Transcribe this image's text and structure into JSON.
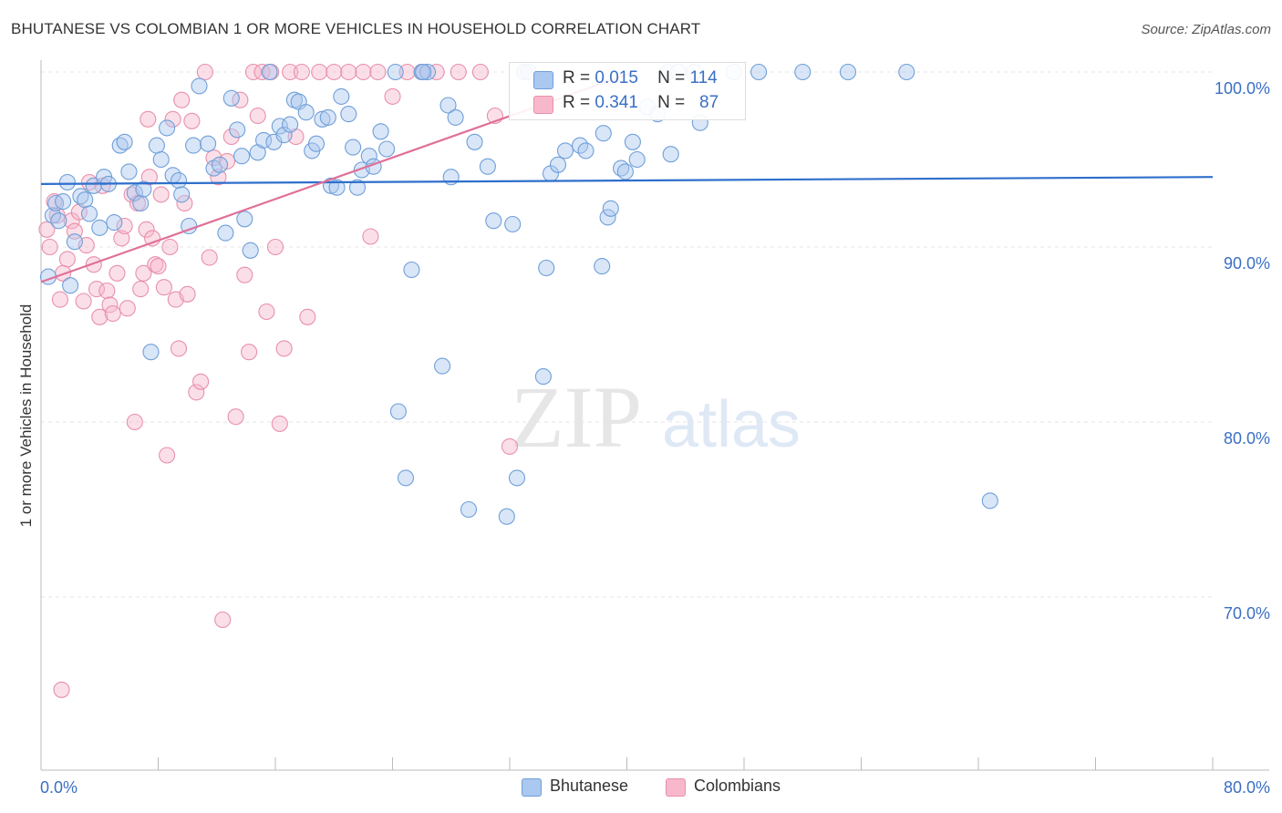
{
  "title": "BHUTANESE VS COLOMBIAN 1 OR MORE VEHICLES IN HOUSEHOLD CORRELATION CHART",
  "source": "Source: ZipAtlas.com",
  "watermark": {
    "zip": "ZIP",
    "atlas": "atlas"
  },
  "colors": {
    "bhutanese_fill": "#aac8f0",
    "bhutanese_stroke": "#6f9fd8",
    "bhutanese_line": "#2e6fcc",
    "colombian_fill": "#f7b8cb",
    "colombian_stroke": "#e890ab",
    "colombian_line": "#e07098",
    "axis_label": "#3a6fc4"
  },
  "legend": {
    "bhutanese": {
      "r_label": "R =",
      "r_value": "0.015",
      "n_label": "N =",
      "n_value": "114"
    },
    "colombian": {
      "r_label": "R =",
      "r_value": "0.341",
      "n_label": "N =",
      "n_value": "87"
    }
  },
  "chart_data": {
    "type": "scatter",
    "title": "BHUTANESE VS COLOMBIAN 1 OR MORE VEHICLES IN HOUSEHOLD CORRELATION CHART",
    "xlabel": "",
    "ylabel": "1 or more Vehicles in Household",
    "xlim": [
      0,
      80
    ],
    "ylim": [
      60.5,
      101.5
    ],
    "x_tick_labels": [
      {
        "value": 0,
        "label": "0.0%"
      },
      {
        "value": 80,
        "label": "80.0%"
      }
    ],
    "y_tick_labels": [
      {
        "value": 100,
        "label": "100.0%"
      },
      {
        "value": 90,
        "label": "90.0%"
      },
      {
        "value": 80,
        "label": "80.0%"
      },
      {
        "value": 70,
        "label": "70.0%"
      }
    ],
    "grid": true,
    "legend_position": "top-center",
    "series": [
      {
        "name": "Bhutanese",
        "r": 0.015,
        "n": 114,
        "trend": {
          "x": [
            0,
            80
          ],
          "y": [
            93.6,
            94.0
          ]
        },
        "points": [
          [
            0.5,
            88.3
          ],
          [
            0.8,
            91.8
          ],
          [
            1.0,
            92.5
          ],
          [
            1.2,
            91.5
          ],
          [
            1.5,
            92.6
          ],
          [
            1.8,
            93.7
          ],
          [
            2.0,
            87.8
          ],
          [
            2.3,
            90.3
          ],
          [
            2.7,
            92.9
          ],
          [
            3.0,
            92.7
          ],
          [
            3.3,
            91.9
          ],
          [
            3.6,
            93.5
          ],
          [
            4.0,
            91.1
          ],
          [
            4.3,
            94.0
          ],
          [
            4.6,
            93.6
          ],
          [
            5.0,
            91.4
          ],
          [
            5.4,
            95.8
          ],
          [
            5.7,
            96.0
          ],
          [
            6.0,
            94.3
          ],
          [
            6.4,
            93.1
          ],
          [
            6.8,
            92.5
          ],
          [
            7.0,
            93.3
          ],
          [
            7.5,
            84.0
          ],
          [
            7.9,
            95.8
          ],
          [
            8.2,
            95.0
          ],
          [
            8.6,
            96.8
          ],
          [
            9.0,
            94.1
          ],
          [
            9.4,
            93.8
          ],
          [
            9.6,
            93.0
          ],
          [
            10.1,
            91.2
          ],
          [
            10.4,
            95.8
          ],
          [
            10.8,
            99.2
          ],
          [
            11.4,
            95.9
          ],
          [
            11.8,
            94.5
          ],
          [
            12.2,
            94.7
          ],
          [
            12.6,
            90.8
          ],
          [
            13.0,
            98.5
          ],
          [
            13.4,
            96.7
          ],
          [
            13.7,
            95.2
          ],
          [
            13.9,
            91.6
          ],
          [
            14.3,
            89.8
          ],
          [
            14.8,
            95.4
          ],
          [
            15.2,
            96.1
          ],
          [
            15.6,
            100.0
          ],
          [
            15.9,
            96.0
          ],
          [
            16.3,
            96.9
          ],
          [
            16.6,
            96.4
          ],
          [
            17.0,
            97.0
          ],
          [
            17.3,
            98.4
          ],
          [
            17.6,
            98.3
          ],
          [
            18.1,
            97.7
          ],
          [
            18.5,
            95.5
          ],
          [
            18.8,
            95.9
          ],
          [
            19.2,
            97.3
          ],
          [
            19.6,
            97.4
          ],
          [
            19.8,
            93.5
          ],
          [
            20.2,
            93.4
          ],
          [
            20.5,
            98.6
          ],
          [
            21.0,
            97.6
          ],
          [
            21.3,
            95.7
          ],
          [
            21.6,
            93.4
          ],
          [
            21.9,
            94.4
          ],
          [
            22.4,
            95.2
          ],
          [
            22.7,
            94.6
          ],
          [
            23.2,
            96.6
          ],
          [
            23.6,
            95.6
          ],
          [
            24.2,
            100.0
          ],
          [
            24.4,
            80.6
          ],
          [
            24.9,
            76.8
          ],
          [
            25.3,
            88.7
          ],
          [
            26.0,
            100.0
          ],
          [
            26.4,
            100.0
          ],
          [
            27.4,
            83.2
          ],
          [
            27.8,
            98.1
          ],
          [
            28.0,
            94.0
          ],
          [
            28.3,
            97.4
          ],
          [
            29.2,
            75.0
          ],
          [
            29.6,
            96.0
          ],
          [
            30.5,
            94.6
          ],
          [
            30.9,
            91.5
          ],
          [
            31.8,
            74.6
          ],
          [
            32.2,
            91.3
          ],
          [
            32.5,
            76.8
          ],
          [
            33.0,
            100.0
          ],
          [
            34.3,
            82.6
          ],
          [
            34.5,
            88.8
          ],
          [
            34.8,
            94.2
          ],
          [
            35.3,
            94.7
          ],
          [
            35.8,
            95.5
          ],
          [
            36.8,
            95.8
          ],
          [
            37.2,
            95.5
          ],
          [
            38.3,
            88.9
          ],
          [
            38.4,
            96.5
          ],
          [
            38.7,
            91.7
          ],
          [
            38.9,
            92.2
          ],
          [
            39.6,
            94.5
          ],
          [
            39.9,
            94.3
          ],
          [
            40.4,
            96.0
          ],
          [
            40.7,
            95.0
          ],
          [
            41.4,
            98.0
          ],
          [
            42.1,
            97.6
          ],
          [
            42.8,
            100.0
          ],
          [
            43.0,
            95.3
          ],
          [
            43.5,
            100.0
          ],
          [
            44.6,
            100.0
          ],
          [
            45.0,
            97.1
          ],
          [
            47.3,
            100.0
          ],
          [
            49.0,
            100.0
          ],
          [
            52.0,
            100.0
          ],
          [
            55.1,
            100.0
          ],
          [
            59.1,
            100.0
          ],
          [
            64.8,
            75.5
          ],
          [
            33.3,
            100.0
          ],
          [
            26.1,
            100.0
          ]
        ]
      },
      {
        "name": "Colombians",
        "r": 0.341,
        "n": 87,
        "trend": {
          "x": [
            0,
            40.5
          ],
          "y": [
            88.0,
            100.0
          ]
        },
        "points": [
          [
            0.4,
            91.0
          ],
          [
            0.6,
            90.0
          ],
          [
            0.9,
            92.6
          ],
          [
            1.1,
            91.8
          ],
          [
            1.3,
            87.0
          ],
          [
            1.5,
            88.5
          ],
          [
            1.8,
            89.3
          ],
          [
            2.1,
            91.5
          ],
          [
            2.3,
            90.9
          ],
          [
            2.6,
            92.0
          ],
          [
            2.9,
            86.9
          ],
          [
            3.1,
            90.1
          ],
          [
            3.3,
            93.7
          ],
          [
            3.6,
            89.0
          ],
          [
            3.8,
            87.6
          ],
          [
            4.0,
            86.0
          ],
          [
            4.2,
            93.5
          ],
          [
            4.5,
            87.5
          ],
          [
            4.7,
            86.7
          ],
          [
            4.9,
            86.2
          ],
          [
            5.2,
            88.5
          ],
          [
            5.5,
            90.5
          ],
          [
            5.7,
            91.2
          ],
          [
            5.9,
            86.5
          ],
          [
            6.2,
            93.0
          ],
          [
            6.4,
            80.0
          ],
          [
            6.6,
            92.5
          ],
          [
            6.8,
            87.6
          ],
          [
            7.0,
            88.5
          ],
          [
            7.2,
            91.0
          ],
          [
            7.4,
            94.0
          ],
          [
            7.6,
            90.5
          ],
          [
            7.8,
            89.0
          ],
          [
            8.0,
            88.9
          ],
          [
            8.2,
            93.0
          ],
          [
            8.4,
            87.7
          ],
          [
            8.6,
            78.1
          ],
          [
            8.8,
            90.0
          ],
          [
            9.0,
            97.3
          ],
          [
            9.2,
            87.0
          ],
          [
            9.4,
            84.2
          ],
          [
            9.6,
            98.4
          ],
          [
            9.8,
            92.5
          ],
          [
            10.0,
            87.3
          ],
          [
            10.3,
            97.2
          ],
          [
            10.6,
            81.7
          ],
          [
            10.9,
            82.3
          ],
          [
            11.2,
            100.0
          ],
          [
            11.5,
            89.4
          ],
          [
            11.8,
            95.1
          ],
          [
            12.1,
            94.0
          ],
          [
            12.4,
            68.7
          ],
          [
            12.7,
            94.9
          ],
          [
            13.0,
            96.3
          ],
          [
            13.3,
            80.3
          ],
          [
            13.6,
            98.4
          ],
          [
            13.9,
            88.4
          ],
          [
            14.2,
            84.0
          ],
          [
            14.5,
            100.0
          ],
          [
            14.8,
            97.5
          ],
          [
            15.1,
            100.0
          ],
          [
            15.4,
            86.3
          ],
          [
            15.7,
            100.0
          ],
          [
            16.0,
            90.0
          ],
          [
            16.3,
            79.9
          ],
          [
            16.6,
            84.2
          ],
          [
            17.0,
            100.0
          ],
          [
            17.4,
            96.3
          ],
          [
            17.8,
            100.0
          ],
          [
            18.2,
            86.0
          ],
          [
            19.0,
            100.0
          ],
          [
            20.0,
            100.0
          ],
          [
            21.0,
            100.0
          ],
          [
            22.0,
            100.0
          ],
          [
            22.5,
            90.6
          ],
          [
            23.0,
            100.0
          ],
          [
            24.0,
            98.6
          ],
          [
            25.0,
            100.0
          ],
          [
            26.0,
            100.0
          ],
          [
            27.0,
            100.0
          ],
          [
            28.5,
            100.0
          ],
          [
            30.0,
            100.0
          ],
          [
            31.0,
            97.5
          ],
          [
            32.0,
            78.6
          ],
          [
            33.0,
            100.0
          ],
          [
            1.4,
            64.7
          ],
          [
            7.3,
            97.3
          ]
        ]
      }
    ]
  },
  "bottom_legend": {
    "bhutanese": "Bhutanese",
    "colombians": "Colombians"
  }
}
